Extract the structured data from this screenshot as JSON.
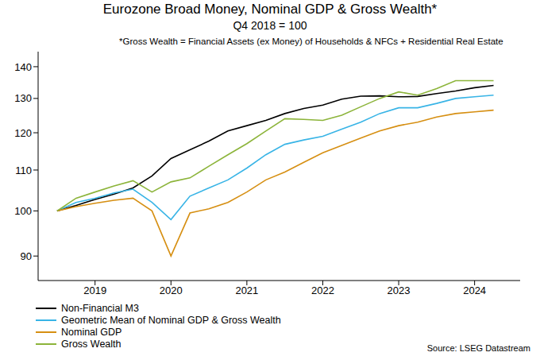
{
  "chart_data": {
    "type": "line",
    "title": "Eurozone Broad Money, Nominal GDP & Gross Wealth*",
    "subtitle": "Q4 2018 = 100",
    "annotations": [
      "*Gross Wealth = Financial Assets (ex Money) of Households & NFCs + Residential Real Estate",
      "Source: LSEG Datastream"
    ],
    "x": [
      2019.0,
      2019.25,
      2019.5,
      2019.75,
      2020.0,
      2020.25,
      2020.5,
      2020.75,
      2021.0,
      2021.25,
      2021.5,
      2021.75,
      2022.0,
      2022.25,
      2022.5,
      2022.75,
      2023.0,
      2023.25,
      2023.5,
      2023.75,
      2024.0,
      2024.25,
      2024.5,
      2024.75
    ],
    "series": [
      {
        "name": "Non-Financial M3",
        "color": "#000000",
        "values": [
          100,
          101.3,
          102.7,
          104,
          105.5,
          108.5,
          113,
          115.3,
          117.7,
          120.5,
          122,
          123.5,
          125.5,
          127,
          128,
          129.8,
          130.7,
          130.8,
          130.5,
          130.6,
          131.5,
          132.3,
          133.3,
          134
        ]
      },
      {
        "name": "Geometric Mean of Nominal GDP & Gross Wealth",
        "color": "#38b4e6",
        "values": [
          100,
          102,
          103,
          104.3,
          105.2,
          102,
          98,
          103.5,
          105.5,
          107.5,
          110.5,
          114,
          116.8,
          118,
          119,
          121,
          123,
          125.5,
          127.2,
          127.2,
          128.5,
          130,
          130.5,
          131
        ]
      },
      {
        "name": "Nominal GDP",
        "color": "#d68f12",
        "values": [
          100,
          101,
          101.8,
          102.5,
          103,
          100,
          90,
          99.5,
          100.5,
          102,
          104.5,
          107.5,
          109.5,
          112,
          114.5,
          116.5,
          118.5,
          120.5,
          122,
          123,
          124.5,
          125.5,
          126,
          126.5
        ]
      },
      {
        "name": "Gross Wealth",
        "color": "#8cb43a",
        "values": [
          100,
          103,
          104.5,
          106,
          107.3,
          104.5,
          107,
          108,
          111,
          114,
          117,
          120.5,
          124,
          123.8,
          123.5,
          125,
          127.5,
          130,
          132,
          131,
          133,
          135.5,
          135.5,
          135.5
        ]
      }
    ],
    "xlim": [
      2018.75,
      2025.1
    ],
    "xticks": [
      {
        "value": 2019.5,
        "label": "2019"
      },
      {
        "value": 2020.5,
        "label": "2020"
      },
      {
        "value": 2021.5,
        "label": "2021"
      },
      {
        "value": 2022.5,
        "label": "2022"
      },
      {
        "value": 2023.5,
        "label": "2023"
      },
      {
        "value": 2024.5,
        "label": "2024"
      }
    ],
    "ylim": [
      85,
      145
    ],
    "yticks": [
      90,
      100,
      110,
      120,
      130,
      140
    ],
    "log": "y",
    "grid": false,
    "legend": "bottom-left"
  }
}
